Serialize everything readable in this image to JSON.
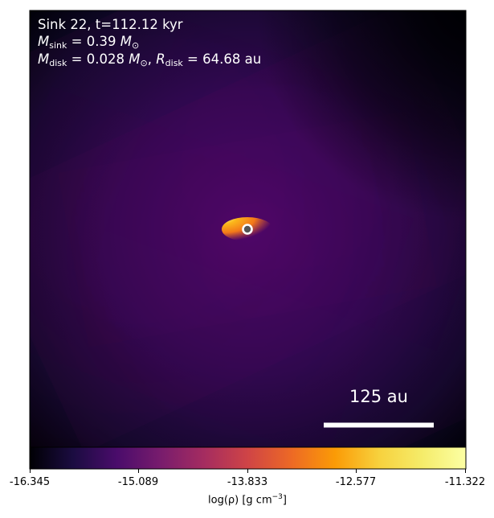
{
  "panel": {
    "title": "Sink 22, t=112.12 kyr",
    "sink_mass_value": "0.39",
    "disk_mass_value": "0.028",
    "disk_radius_value": "64.68",
    "disk_radius_unit": "au"
  },
  "scale_bar": {
    "label": "125 au"
  },
  "colorbar": {
    "colormap": "inferno",
    "min": -16.345,
    "max": -11.322,
    "ticks": [
      "-16.345",
      "-15.089",
      "-13.833",
      "-12.577",
      "-11.322"
    ],
    "title": "log(ρ) [g cm"
  },
  "colors": {
    "frame": "#000000",
    "sink_marker_ring": "#ffffff",
    "sink_marker_fill": "#555555",
    "text_on_image": "#ffffff"
  }
}
